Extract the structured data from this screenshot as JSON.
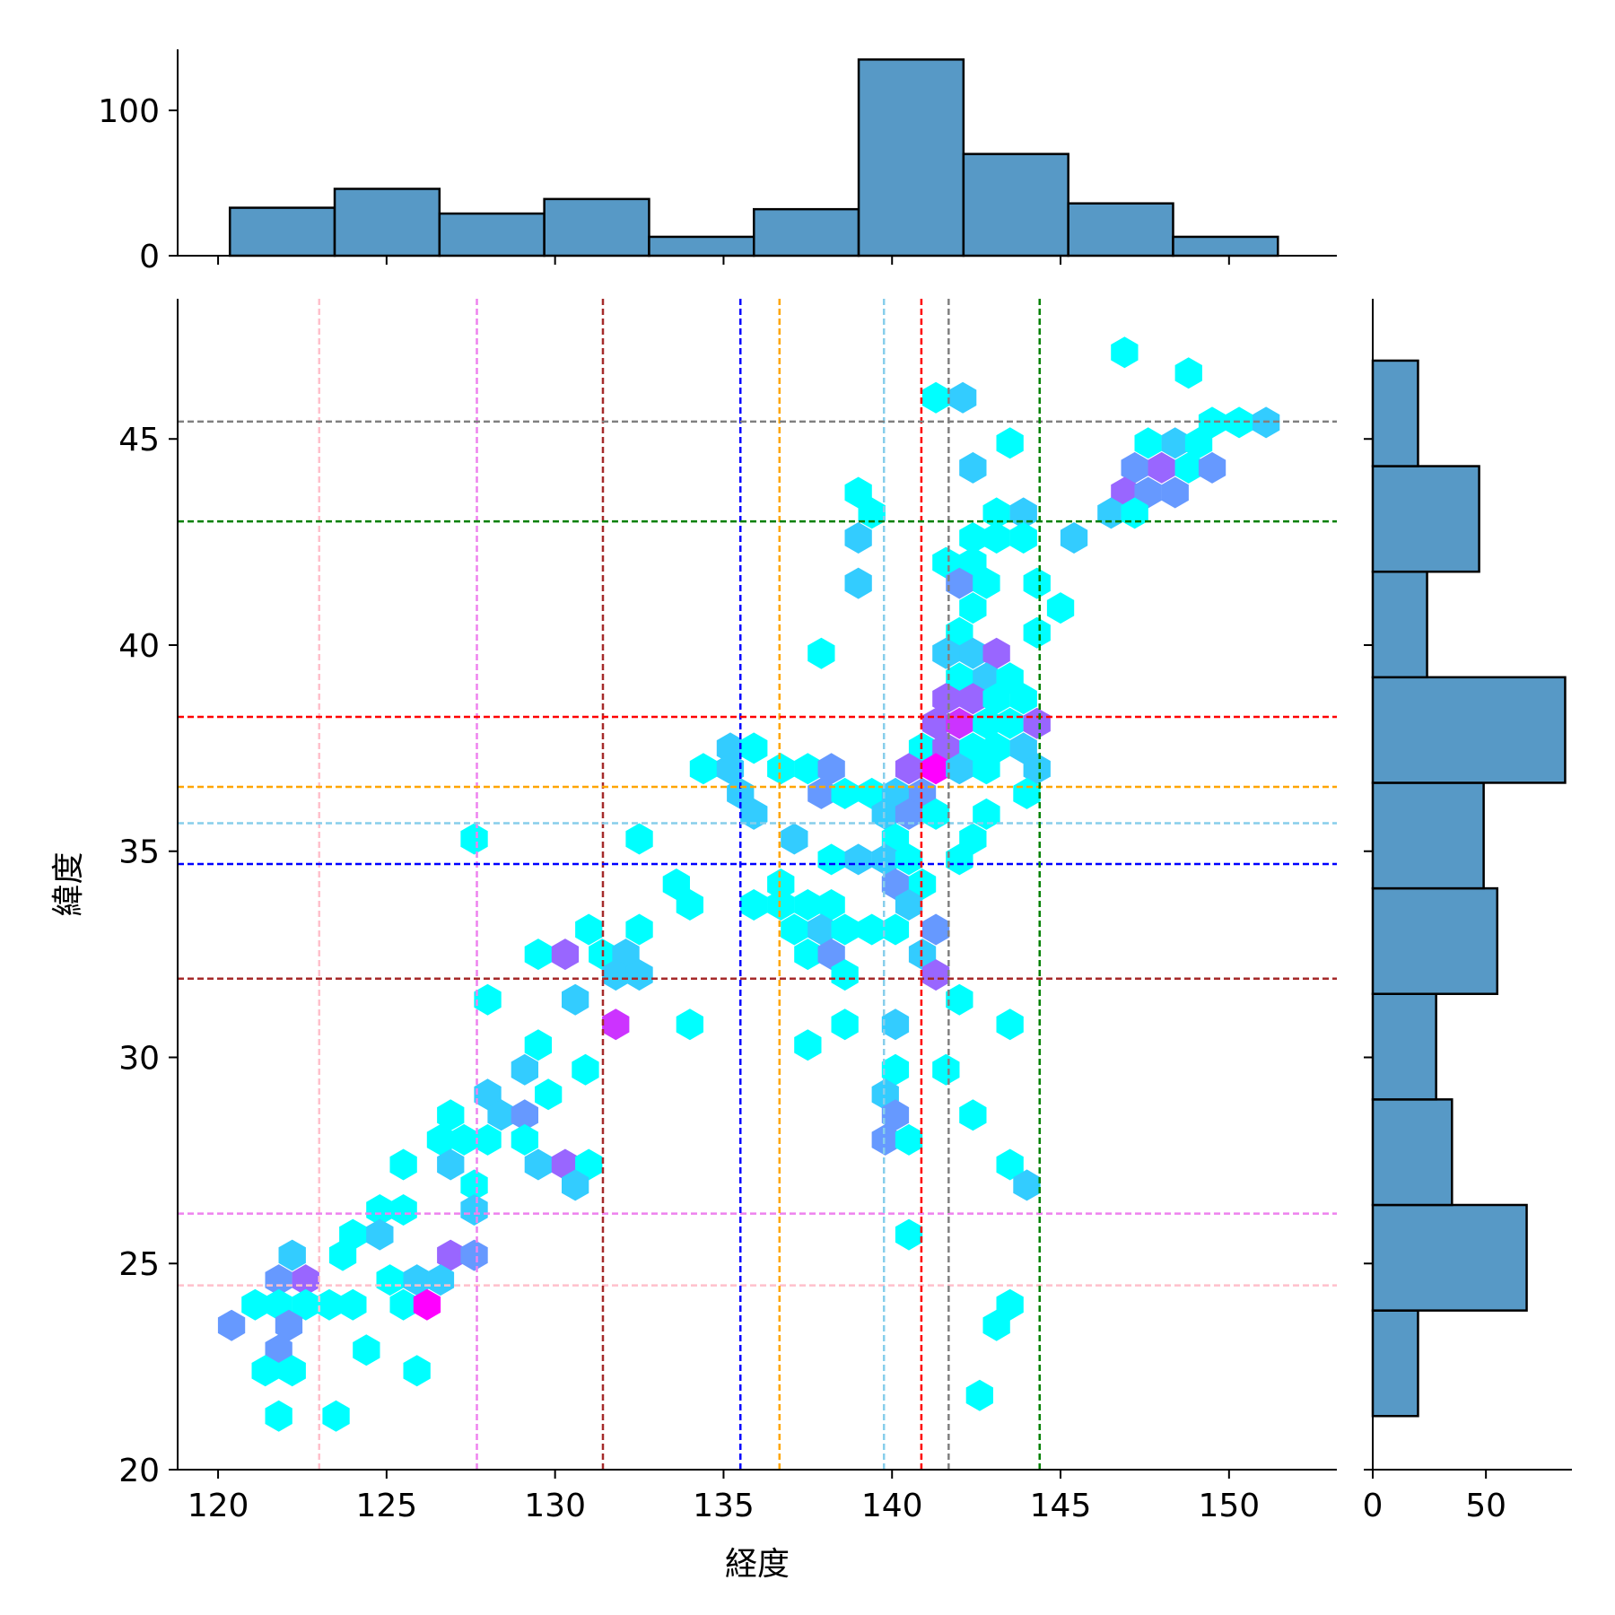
{
  "chart_data": {
    "type": "hexbin-jointplot",
    "xlabel": "経度",
    "ylabel": "緯度",
    "xlim": [
      118.8,
      153.2
    ],
    "ylim": [
      20,
      48.4
    ],
    "x_ticks": [
      120,
      125,
      130,
      135,
      140,
      145,
      150
    ],
    "y_ticks": [
      20,
      25,
      30,
      35,
      40,
      45
    ],
    "colormap": [
      "#00ffff",
      "#ff00ff"
    ],
    "reference_lines": [
      {
        "color": "#ffc0cb",
        "lon": 123.0,
        "lat": 24.47
      },
      {
        "color": "#ee82ee",
        "lon": 127.68,
        "lat": 26.21
      },
      {
        "color": "#a52a2a",
        "lon": 131.42,
        "lat": 31.91
      },
      {
        "color": "#0000ff",
        "lon": 135.5,
        "lat": 34.69
      },
      {
        "color": "#ffa500",
        "lon": 136.66,
        "lat": 36.56
      },
      {
        "color": "#87ceeb",
        "lon": 139.76,
        "lat": 35.68
      },
      {
        "color": "#ff0000",
        "lon": 140.87,
        "lat": 38.26
      },
      {
        "color": "#808080",
        "lon": 141.68,
        "lat": 45.42
      },
      {
        "color": "#008000",
        "lon": 144.38,
        "lat": 43.0
      }
    ],
    "hexbins": [
      [
        146.9,
        47.1,
        1
      ],
      [
        148.8,
        46.6,
        1
      ],
      [
        141.3,
        46.0,
        1
      ],
      [
        142.1,
        46.0,
        2
      ],
      [
        149.5,
        45.4,
        1
      ],
      [
        150.3,
        45.4,
        1
      ],
      [
        151.1,
        45.4,
        2
      ],
      [
        143.5,
        44.9,
        1
      ],
      [
        147.6,
        44.9,
        1
      ],
      [
        148.4,
        44.9,
        2
      ],
      [
        149.1,
        44.9,
        1
      ],
      [
        142.4,
        44.3,
        2
      ],
      [
        147.2,
        44.3,
        3
      ],
      [
        148.0,
        44.3,
        4
      ],
      [
        148.8,
        44.3,
        1
      ],
      [
        149.5,
        44.3,
        3
      ],
      [
        139.0,
        43.7,
        1
      ],
      [
        146.9,
        43.7,
        4
      ],
      [
        147.6,
        43.7,
        3
      ],
      [
        148.4,
        43.7,
        3
      ],
      [
        139.4,
        43.2,
        1
      ],
      [
        143.1,
        43.2,
        1
      ],
      [
        143.9,
        43.2,
        2
      ],
      [
        146.5,
        43.2,
        2
      ],
      [
        147.2,
        43.2,
        1
      ],
      [
        139.0,
        42.6,
        2
      ],
      [
        142.4,
        42.6,
        1
      ],
      [
        143.1,
        42.6,
        1
      ],
      [
        143.9,
        42.6,
        1
      ],
      [
        145.4,
        42.6,
        2
      ],
      [
        141.6,
        42.0,
        1
      ],
      [
        142.4,
        42.0,
        1
      ],
      [
        142.0,
        41.5,
        3
      ],
      [
        142.8,
        41.5,
        1
      ],
      [
        144.3,
        41.5,
        1
      ],
      [
        139.0,
        41.5,
        2
      ],
      [
        142.4,
        40.9,
        1
      ],
      [
        145.0,
        40.9,
        1
      ],
      [
        142.0,
        40.3,
        1
      ],
      [
        144.3,
        40.3,
        1
      ],
      [
        137.9,
        39.8,
        1
      ],
      [
        141.6,
        39.8,
        2
      ],
      [
        142.4,
        39.8,
        2
      ],
      [
        143.1,
        39.8,
        4
      ],
      [
        142.0,
        39.2,
        1
      ],
      [
        142.8,
        39.2,
        2
      ],
      [
        143.5,
        39.2,
        1
      ],
      [
        143.9,
        38.7,
        1
      ],
      [
        141.6,
        38.7,
        4
      ],
      [
        142.4,
        38.7,
        4
      ],
      [
        143.1,
        38.7,
        1
      ],
      [
        141.3,
        38.1,
        4
      ],
      [
        142.0,
        38.1,
        5
      ],
      [
        142.8,
        38.1,
        1
      ],
      [
        143.5,
        38.1,
        1
      ],
      [
        144.3,
        38.1,
        4
      ],
      [
        135.2,
        37.5,
        2
      ],
      [
        135.9,
        37.5,
        1
      ],
      [
        140.9,
        37.5,
        1
      ],
      [
        141.6,
        37.5,
        4
      ],
      [
        142.4,
        37.5,
        1
      ],
      [
        143.1,
        37.5,
        1
      ],
      [
        143.9,
        37.5,
        2
      ],
      [
        134.4,
        37.0,
        1
      ],
      [
        135.2,
        37.0,
        2
      ],
      [
        136.7,
        37.0,
        1
      ],
      [
        137.5,
        37.0,
        1
      ],
      [
        138.2,
        37.0,
        3
      ],
      [
        140.5,
        37.0,
        4
      ],
      [
        141.3,
        37.0,
        6
      ],
      [
        142.0,
        37.0,
        2
      ],
      [
        142.8,
        37.0,
        1
      ],
      [
        144.3,
        37.0,
        2
      ],
      [
        135.5,
        36.4,
        2
      ],
      [
        137.9,
        36.4,
        3
      ],
      [
        138.6,
        36.4,
        1
      ],
      [
        139.4,
        36.4,
        1
      ],
      [
        140.1,
        36.4,
        2
      ],
      [
        140.9,
        36.4,
        3
      ],
      [
        144.0,
        36.4,
        1
      ],
      [
        135.9,
        35.9,
        2
      ],
      [
        139.8,
        35.9,
        2
      ],
      [
        140.5,
        35.9,
        3
      ],
      [
        141.3,
        35.9,
        1
      ],
      [
        142.8,
        35.9,
        1
      ],
      [
        127.6,
        35.3,
        1
      ],
      [
        132.5,
        35.3,
        1
      ],
      [
        137.1,
        35.3,
        2
      ],
      [
        140.1,
        35.3,
        1
      ],
      [
        142.4,
        35.3,
        1
      ],
      [
        138.2,
        34.8,
        1
      ],
      [
        139.0,
        34.8,
        2
      ],
      [
        139.8,
        34.8,
        2
      ],
      [
        140.5,
        34.8,
        1
      ],
      [
        142.0,
        34.8,
        1
      ],
      [
        133.6,
        34.2,
        1
      ],
      [
        136.7,
        34.2,
        1
      ],
      [
        140.1,
        34.2,
        3
      ],
      [
        140.9,
        34.2,
        1
      ],
      [
        134.0,
        33.7,
        1
      ],
      [
        135.9,
        33.7,
        1
      ],
      [
        136.7,
        33.7,
        1
      ],
      [
        137.5,
        33.7,
        1
      ],
      [
        138.2,
        33.7,
        1
      ],
      [
        140.5,
        33.7,
        2
      ],
      [
        131.0,
        33.1,
        1
      ],
      [
        132.5,
        33.1,
        1
      ],
      [
        137.1,
        33.1,
        1
      ],
      [
        137.9,
        33.1,
        2
      ],
      [
        138.6,
        33.1,
        1
      ],
      [
        139.4,
        33.1,
        1
      ],
      [
        140.1,
        33.1,
        1
      ],
      [
        141.3,
        33.1,
        3
      ],
      [
        129.5,
        32.5,
        1
      ],
      [
        130.3,
        32.5,
        4
      ],
      [
        131.4,
        32.5,
        1
      ],
      [
        132.1,
        32.5,
        2
      ],
      [
        137.5,
        32.5,
        1
      ],
      [
        138.2,
        32.5,
        3
      ],
      [
        140.9,
        32.5,
        2
      ],
      [
        131.8,
        32.0,
        2
      ],
      [
        132.5,
        32.0,
        2
      ],
      [
        138.6,
        32.0,
        1
      ],
      [
        141.3,
        32.0,
        4
      ],
      [
        128.0,
        31.4,
        1
      ],
      [
        130.6,
        31.4,
        2
      ],
      [
        142.0,
        31.4,
        1
      ],
      [
        131.8,
        30.8,
        5
      ],
      [
        134.0,
        30.8,
        1
      ],
      [
        138.6,
        30.8,
        1
      ],
      [
        140.1,
        30.8,
        2
      ],
      [
        143.5,
        30.8,
        1
      ],
      [
        137.5,
        30.3,
        1
      ],
      [
        129.5,
        30.3,
        1
      ],
      [
        129.1,
        29.7,
        2
      ],
      [
        130.9,
        29.7,
        1
      ],
      [
        140.1,
        29.7,
        1
      ],
      [
        141.6,
        29.7,
        1
      ],
      [
        128.0,
        29.1,
        2
      ],
      [
        129.8,
        29.1,
        1
      ],
      [
        139.8,
        29.1,
        2
      ],
      [
        126.9,
        28.6,
        1
      ],
      [
        128.4,
        28.6,
        2
      ],
      [
        129.1,
        28.6,
        3
      ],
      [
        140.1,
        28.6,
        3
      ],
      [
        142.4,
        28.6,
        1
      ],
      [
        126.6,
        28.0,
        1
      ],
      [
        127.3,
        28.0,
        1
      ],
      [
        128.0,
        28.0,
        1
      ],
      [
        129.1,
        28.0,
        1
      ],
      [
        139.8,
        28.0,
        3
      ],
      [
        140.5,
        28.0,
        1
      ],
      [
        125.5,
        27.4,
        1
      ],
      [
        126.9,
        27.4,
        2
      ],
      [
        129.5,
        27.4,
        2
      ],
      [
        130.3,
        27.4,
        4
      ],
      [
        131.0,
        27.4,
        1
      ],
      [
        143.5,
        27.4,
        1
      ],
      [
        127.6,
        26.9,
        1
      ],
      [
        130.6,
        26.9,
        2
      ],
      [
        144.0,
        26.9,
        2
      ],
      [
        124.8,
        26.3,
        1
      ],
      [
        125.5,
        26.3,
        1
      ],
      [
        127.6,
        26.3,
        2
      ],
      [
        124.0,
        25.7,
        1
      ],
      [
        124.8,
        25.7,
        2
      ],
      [
        140.5,
        25.7,
        1
      ],
      [
        122.2,
        25.2,
        2
      ],
      [
        123.7,
        25.2,
        1
      ],
      [
        126.9,
        25.2,
        4
      ],
      [
        127.6,
        25.2,
        3
      ],
      [
        121.8,
        24.6,
        3
      ],
      [
        122.6,
        24.6,
        4
      ],
      [
        125.1,
        24.6,
        1
      ],
      [
        125.9,
        24.6,
        2
      ],
      [
        126.6,
        24.6,
        2
      ],
      [
        121.1,
        24.0,
        1
      ],
      [
        121.8,
        24.0,
        1
      ],
      [
        122.6,
        24.0,
        1
      ],
      [
        123.3,
        24.0,
        1
      ],
      [
        124.0,
        24.0,
        1
      ],
      [
        125.5,
        24.0,
        1
      ],
      [
        126.2,
        24.0,
        6
      ],
      [
        143.5,
        24.0,
        1
      ],
      [
        120.4,
        23.5,
        3
      ],
      [
        122.1,
        23.5,
        3
      ],
      [
        143.1,
        23.5,
        1
      ],
      [
        121.8,
        22.9,
        3
      ],
      [
        124.4,
        22.9,
        1
      ],
      [
        121.4,
        22.4,
        1
      ],
      [
        122.2,
        22.4,
        1
      ],
      [
        125.9,
        22.4,
        1
      ],
      [
        142.6,
        21.8,
        1
      ],
      [
        121.8,
        21.3,
        1
      ],
      [
        123.5,
        21.3,
        1
      ]
    ],
    "x_marginal": {
      "edges": [
        120.35,
        123.46,
        126.57,
        129.68,
        132.79,
        135.9,
        139.01,
        142.12,
        145.23,
        148.34,
        151.45
      ],
      "counts": [
        33,
        46,
        29,
        39,
        13,
        32,
        135,
        70,
        36,
        13
      ],
      "ylim": [
        0,
        142
      ],
      "ticks": [
        0,
        100
      ]
    },
    "y_marginal": {
      "edges": [
        21.3,
        23.86,
        26.42,
        28.98,
        31.54,
        34.1,
        36.66,
        39.22,
        41.78,
        44.34,
        46.9
      ],
      "counts": [
        20,
        68,
        35,
        28,
        55,
        49,
        85,
        24,
        47,
        20
      ],
      "xlim": [
        0,
        88
      ],
      "ticks": [
        0,
        50
      ]
    }
  }
}
